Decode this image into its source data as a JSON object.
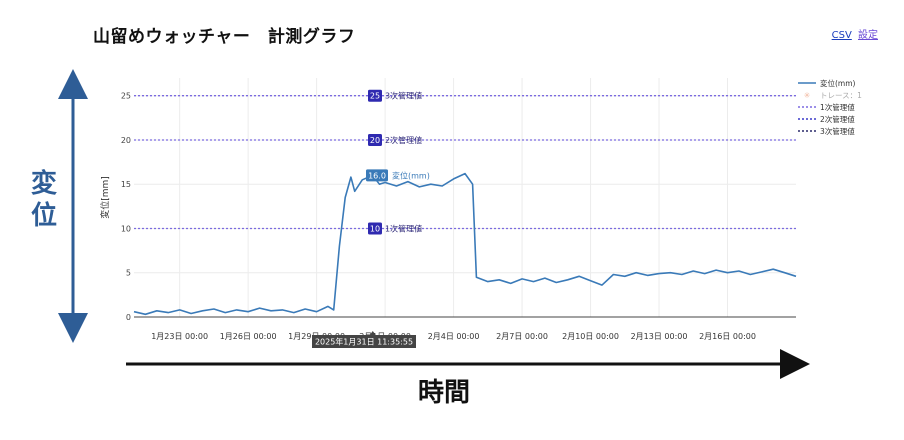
{
  "header": {
    "title": "山留めウォッチャー　計測グラフ",
    "csv_link": "CSV",
    "settings_link": "設定"
  },
  "annotations": {
    "side_label": "変位",
    "time_label": "時間",
    "hover_label": "2025年1月31日 11:35:55",
    "hover_value_badge": "16.0",
    "hover_series_name": "変位(mm)"
  },
  "colors": {
    "series": "#3a7ab8",
    "threshold": "#7b6ae0",
    "threshold_badge": "#2f2ab0",
    "arrow": "#2e5d96",
    "trace_dot": "#f2b8a0"
  },
  "chart_data": {
    "type": "line",
    "ylabel": "変位[mm]",
    "xlabel": "",
    "ylim": [
      0,
      27
    ],
    "xlim": [
      "2025-01-21T00:00",
      "2025-02-19T00:00"
    ],
    "yticks": [
      "0",
      "5",
      "10",
      "15",
      "20",
      "25"
    ],
    "ytick_values": [
      0,
      5,
      10,
      15,
      20,
      25
    ],
    "xtick_labels": [
      "1月23日 00:00",
      "1月26日 00:00",
      "1月29日 00:00",
      "2月1日 00:00",
      "2月4日 00:00",
      "2月7日 00:00",
      "2月10日 00:00",
      "2月13日 00:00",
      "2月16日 00:00"
    ],
    "xtick_values": [
      "2025-01-23T00:00",
      "2025-01-26T00:00",
      "2025-01-29T00:00",
      "2025-02-01T00:00",
      "2025-02-04T00:00",
      "2025-02-07T00:00",
      "2025-02-10T00:00",
      "2025-02-13T00:00",
      "2025-02-16T00:00"
    ],
    "grid": true,
    "legend_position": "top-right",
    "legend": [
      "変位(mm)",
      "トレース：1",
      "1次管理値",
      "2次管理値",
      "3次管理値"
    ],
    "thresholds": [
      {
        "name": "1次管理値",
        "value": 10
      },
      {
        "name": "2次管理値",
        "value": 20
      },
      {
        "name": "3次管理値",
        "value": 25
      }
    ],
    "series": [
      {
        "name": "変位(mm)",
        "x": [
          "2025-01-21T00:00",
          "2025-01-21T12:00",
          "2025-01-22T00:00",
          "2025-01-22T12:00",
          "2025-01-23T00:00",
          "2025-01-23T12:00",
          "2025-01-24T00:00",
          "2025-01-24T12:00",
          "2025-01-25T00:00",
          "2025-01-25T12:00",
          "2025-01-26T00:00",
          "2025-01-26T12:00",
          "2025-01-27T00:00",
          "2025-01-27T12:00",
          "2025-01-28T00:00",
          "2025-01-28T12:00",
          "2025-01-29T00:00",
          "2025-01-29T12:00",
          "2025-01-29T18:00",
          "2025-01-30T00:00",
          "2025-01-30T06:00",
          "2025-01-30T12:00",
          "2025-01-30T16:00",
          "2025-01-31T00:00",
          "2025-01-31T11:00",
          "2025-01-31T18:00",
          "2025-02-01T00:00",
          "2025-02-01T12:00",
          "2025-02-02T00:00",
          "2025-02-02T12:00",
          "2025-02-03T00:00",
          "2025-02-03T12:00",
          "2025-02-04T00:00",
          "2025-02-04T12:00",
          "2025-02-04T20:00",
          "2025-02-05T00:00",
          "2025-02-05T12:00",
          "2025-02-06T00:00",
          "2025-02-06T12:00",
          "2025-02-07T00:00",
          "2025-02-07T12:00",
          "2025-02-08T00:00",
          "2025-02-08T12:00",
          "2025-02-09T00:00",
          "2025-02-09T12:00",
          "2025-02-10T00:00",
          "2025-02-10T12:00",
          "2025-02-11T00:00",
          "2025-02-11T12:00",
          "2025-02-12T00:00",
          "2025-02-12T12:00",
          "2025-02-13T00:00",
          "2025-02-13T12:00",
          "2025-02-14T00:00",
          "2025-02-14T12:00",
          "2025-02-15T00:00",
          "2025-02-15T12:00",
          "2025-02-16T00:00",
          "2025-02-16T12:00",
          "2025-02-17T00:00",
          "2025-02-17T12:00",
          "2025-02-18T00:00",
          "2025-02-18T12:00",
          "2025-02-19T00:00"
        ],
        "y": [
          0.6,
          0.3,
          0.7,
          0.5,
          0.8,
          0.4,
          0.7,
          0.9,
          0.5,
          0.8,
          0.6,
          1.0,
          0.7,
          0.8,
          0.5,
          0.9,
          0.6,
          1.2,
          0.8,
          8.0,
          13.5,
          15.8,
          14.2,
          15.5,
          16.0,
          15.0,
          15.2,
          14.8,
          15.3,
          14.7,
          15.0,
          14.8,
          15.6,
          16.2,
          15.0,
          4.5,
          4.0,
          4.2,
          3.8,
          4.3,
          4.0,
          4.4,
          3.9,
          4.2,
          4.6,
          4.1,
          3.6,
          4.8,
          4.6,
          5.0,
          4.7,
          4.9,
          5.0,
          4.8,
          5.2,
          4.9,
          5.3,
          5.0,
          5.2,
          4.8,
          5.1,
          5.4,
          5.0,
          4.6
        ]
      }
    ]
  }
}
